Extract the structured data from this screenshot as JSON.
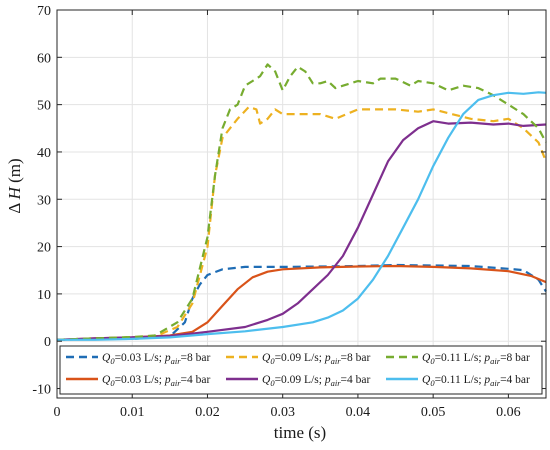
{
  "chart_data": {
    "type": "line",
    "title": "",
    "xlabel": "time (s)",
    "ylabel": "ΔH (m)",
    "xlim": [
      0,
      0.065
    ],
    "ylim": [
      -12,
      70
    ],
    "xticks": [
      0,
      0.01,
      0.02,
      0.03,
      0.04,
      0.05,
      0.06
    ],
    "xtick_labels": [
      "0",
      "0.01",
      "0.02",
      "0.03",
      "0.04",
      "0.05",
      "0.06"
    ],
    "yticks": [
      -10,
      0,
      10,
      20,
      30,
      40,
      50,
      60,
      70
    ],
    "ytick_labels": [
      "-10",
      "0",
      "10",
      "20",
      "30",
      "40",
      "50",
      "60",
      "70"
    ],
    "grid": true,
    "legend_position": "bottom",
    "series": [
      {
        "name": "Q0=0.03 L/s; pair=8 bar",
        "legend": {
          "q": "0.03",
          "p": "8"
        },
        "color": "#1f6db5",
        "dash": "dashed",
        "points": [
          [
            0,
            0.3
          ],
          [
            0.005,
            0.5
          ],
          [
            0.01,
            0.5
          ],
          [
            0.015,
            1.0
          ],
          [
            0.017,
            4
          ],
          [
            0.018,
            9
          ],
          [
            0.019,
            12
          ],
          [
            0.02,
            14
          ],
          [
            0.022,
            15.2
          ],
          [
            0.025,
            15.7
          ],
          [
            0.03,
            15.7
          ],
          [
            0.035,
            15.8
          ],
          [
            0.04,
            15.9
          ],
          [
            0.045,
            16.1
          ],
          [
            0.05,
            16
          ],
          [
            0.055,
            15.9
          ],
          [
            0.06,
            15.3
          ],
          [
            0.062,
            15
          ],
          [
            0.064,
            13
          ],
          [
            0.065,
            10.5
          ]
        ]
      },
      {
        "name": "Q0=0.03 L/s; pair=4 bar",
        "legend": {
          "q": "0.03",
          "p": "4"
        },
        "color": "#d95319",
        "dash": "solid",
        "points": [
          [
            0,
            0.3
          ],
          [
            0.005,
            0.6
          ],
          [
            0.01,
            0.8
          ],
          [
            0.015,
            1.2
          ],
          [
            0.018,
            2
          ],
          [
            0.02,
            4
          ],
          [
            0.022,
            7.5
          ],
          [
            0.024,
            11
          ],
          [
            0.026,
            13.5
          ],
          [
            0.028,
            14.7
          ],
          [
            0.03,
            15.2
          ],
          [
            0.035,
            15.6
          ],
          [
            0.04,
            15.8
          ],
          [
            0.045,
            15.9
          ],
          [
            0.05,
            15.7
          ],
          [
            0.055,
            15.4
          ],
          [
            0.06,
            14.8
          ],
          [
            0.063,
            13.8
          ],
          [
            0.065,
            12.5
          ]
        ]
      },
      {
        "name": "Q0=0.09 L/s; pair=8 bar",
        "legend": {
          "q": "0.09",
          "p": "8"
        },
        "color": "#edb120",
        "dash": "dashed",
        "points": [
          [
            0,
            0.3
          ],
          [
            0.005,
            0.6
          ],
          [
            0.01,
            0.8
          ],
          [
            0.013,
            1
          ],
          [
            0.016,
            3
          ],
          [
            0.018,
            8
          ],
          [
            0.02,
            20
          ],
          [
            0.021,
            35
          ],
          [
            0.022,
            43
          ],
          [
            0.023,
            45
          ],
          [
            0.024,
            47
          ],
          [
            0.0255,
            49.5
          ],
          [
            0.0265,
            49
          ],
          [
            0.027,
            46
          ],
          [
            0.028,
            47
          ],
          [
            0.029,
            49
          ],
          [
            0.03,
            48
          ],
          [
            0.032,
            48
          ],
          [
            0.035,
            48
          ],
          [
            0.037,
            47
          ],
          [
            0.04,
            49
          ],
          [
            0.042,
            49
          ],
          [
            0.045,
            49
          ],
          [
            0.048,
            48.5
          ],
          [
            0.05,
            49
          ],
          [
            0.055,
            47
          ],
          [
            0.058,
            46.5
          ],
          [
            0.06,
            47
          ],
          [
            0.062,
            45
          ],
          [
            0.064,
            42
          ],
          [
            0.065,
            38
          ]
        ]
      },
      {
        "name": "Q0=0.09 L/s; pair=4 bar",
        "legend": {
          "q": "0.09",
          "p": "4"
        },
        "color": "#7e2f8e",
        "dash": "solid",
        "points": [
          [
            0,
            0.3
          ],
          [
            0.005,
            0.6
          ],
          [
            0.01,
            0.8
          ],
          [
            0.015,
            1.1
          ],
          [
            0.018,
            1.6
          ],
          [
            0.02,
            2.0
          ],
          [
            0.025,
            3
          ],
          [
            0.028,
            4.5
          ],
          [
            0.03,
            5.8
          ],
          [
            0.032,
            8
          ],
          [
            0.034,
            11
          ],
          [
            0.036,
            14
          ],
          [
            0.038,
            18
          ],
          [
            0.04,
            24
          ],
          [
            0.042,
            31
          ],
          [
            0.044,
            38
          ],
          [
            0.046,
            42.5
          ],
          [
            0.048,
            45
          ],
          [
            0.05,
            46.5
          ],
          [
            0.052,
            46
          ],
          [
            0.055,
            46.2
          ],
          [
            0.058,
            45.8
          ],
          [
            0.06,
            46
          ],
          [
            0.062,
            45.5
          ],
          [
            0.065,
            45.8
          ]
        ]
      },
      {
        "name": "Q0=0.11 L/s; pair=8 bar",
        "legend": {
          "q": "0.11",
          "p": "8"
        },
        "color": "#77ac30",
        "dash": "dashed",
        "points": [
          [
            0,
            0.3
          ],
          [
            0.005,
            0.6
          ],
          [
            0.01,
            0.9
          ],
          [
            0.013,
            1.2
          ],
          [
            0.016,
            4
          ],
          [
            0.018,
            9
          ],
          [
            0.02,
            22
          ],
          [
            0.021,
            35
          ],
          [
            0.022,
            45
          ],
          [
            0.023,
            49
          ],
          [
            0.024,
            50
          ],
          [
            0.025,
            54
          ],
          [
            0.026,
            55
          ],
          [
            0.027,
            56
          ],
          [
            0.028,
            58.5
          ],
          [
            0.029,
            57
          ],
          [
            0.03,
            53
          ],
          [
            0.031,
            56
          ],
          [
            0.032,
            58
          ],
          [
            0.033,
            57
          ],
          [
            0.034,
            54.5
          ],
          [
            0.035,
            54.5
          ],
          [
            0.036,
            55
          ],
          [
            0.037,
            53.5
          ],
          [
            0.038,
            54
          ],
          [
            0.04,
            55
          ],
          [
            0.042,
            54.5
          ],
          [
            0.043,
            55.5
          ],
          [
            0.045,
            55.5
          ],
          [
            0.047,
            54
          ],
          [
            0.048,
            55
          ],
          [
            0.05,
            54.5
          ],
          [
            0.052,
            53
          ],
          [
            0.054,
            54
          ],
          [
            0.056,
            53.5
          ],
          [
            0.058,
            52
          ],
          [
            0.06,
            50
          ],
          [
            0.062,
            48
          ],
          [
            0.064,
            45
          ],
          [
            0.065,
            42
          ]
        ]
      },
      {
        "name": "Q0=0.11 L/s; pair=4 bar",
        "legend": {
          "q": "0.11",
          "p": "4"
        },
        "color": "#4dbeee",
        "dash": "solid",
        "points": [
          [
            0,
            0.3
          ],
          [
            0.005,
            0.3
          ],
          [
            0.01,
            0.5
          ],
          [
            0.015,
            0.8
          ],
          [
            0.02,
            1.5
          ],
          [
            0.025,
            2.1
          ],
          [
            0.03,
            3
          ],
          [
            0.034,
            4
          ],
          [
            0.036,
            5
          ],
          [
            0.038,
            6.5
          ],
          [
            0.04,
            9
          ],
          [
            0.042,
            13
          ],
          [
            0.044,
            18
          ],
          [
            0.046,
            24
          ],
          [
            0.048,
            30
          ],
          [
            0.05,
            37
          ],
          [
            0.052,
            43
          ],
          [
            0.054,
            48
          ],
          [
            0.056,
            51
          ],
          [
            0.058,
            52
          ],
          [
            0.06,
            52.5
          ],
          [
            0.062,
            52.3
          ],
          [
            0.064,
            52.6
          ],
          [
            0.065,
            52.5
          ]
        ]
      }
    ]
  }
}
